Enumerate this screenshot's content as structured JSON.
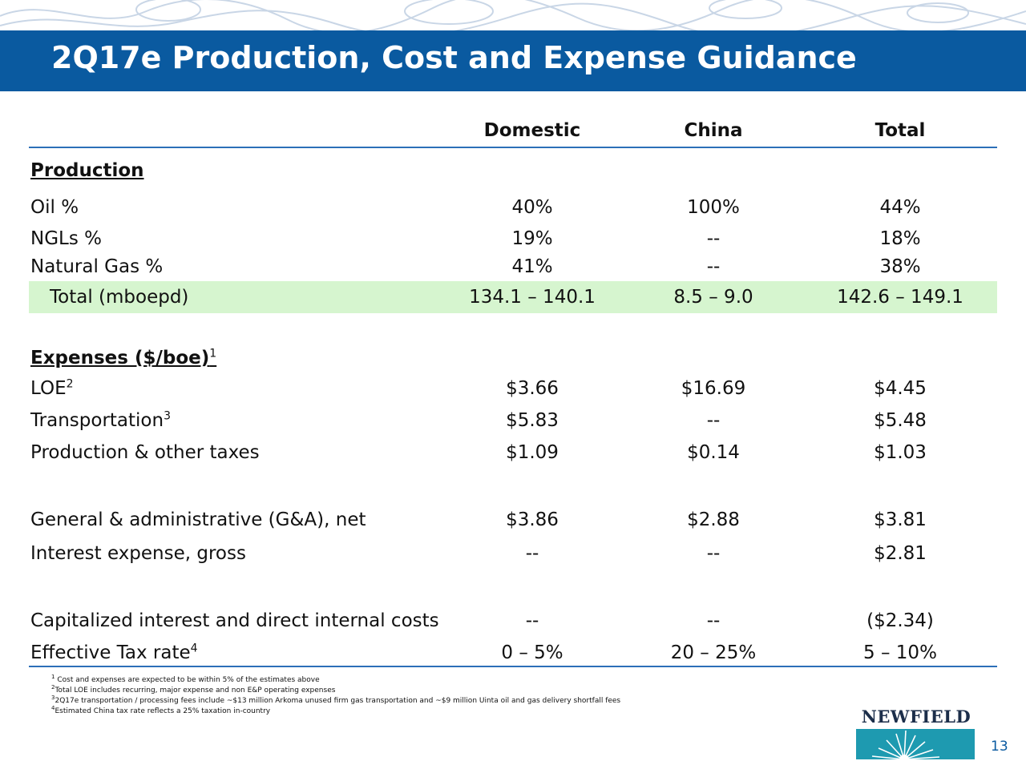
{
  "title": "2Q17e Production, Cost and Expense Guidance",
  "columns": [
    "Domestic",
    "China",
    "Total"
  ],
  "production": {
    "heading": "Production",
    "rows": [
      {
        "label": "Oil %",
        "values": [
          "40%",
          "100%",
          "44%"
        ]
      },
      {
        "label": "NGLs %",
        "values": [
          "19%",
          "--",
          "18%"
        ]
      },
      {
        "label": "Natural Gas %",
        "values": [
          "41%",
          "--",
          "38%"
        ]
      },
      {
        "label": "Total (mboepd)",
        "values": [
          "134.1 – 140.1",
          "8.5 – 9.0",
          "142.6 – 149.1"
        ]
      }
    ]
  },
  "expenses": {
    "heading": "Expenses ($/boe)",
    "heading_sup": "1",
    "rows": [
      {
        "label": "LOE",
        "sup": "2",
        "values": [
          "$3.66",
          "$16.69",
          "$4.45"
        ]
      },
      {
        "label": "Transportation",
        "sup": "3",
        "values": [
          "$5.83",
          "--",
          "$5.48"
        ]
      },
      {
        "label": "Production & other taxes",
        "values": [
          "$1.09",
          "$0.14",
          "$1.03"
        ]
      },
      {
        "label": "General & administrative (G&A), net",
        "values": [
          "$3.86",
          "$2.88",
          "$3.81"
        ]
      },
      {
        "label": "Interest expense, gross",
        "values": [
          "--",
          "--",
          "$2.81"
        ]
      },
      {
        "label": "Capitalized interest and direct internal costs",
        "values": [
          "--",
          "--",
          "($2.34)"
        ]
      },
      {
        "label": "Effective Tax rate",
        "sup": "4",
        "values": [
          "0 – 5%",
          "20 – 25%",
          "5 – 10%"
        ]
      }
    ]
  },
  "footnotes": [
    {
      "num": "1",
      "text": "Cost and expenses are expected to be within 5% of the estimates above"
    },
    {
      "num": "2",
      "text": "Total LOE includes recurring, major expense and non E&P operating expenses"
    },
    {
      "num": "3",
      "text": "2Q17e transportation / processing fees include ~$13 million Arkoma unused firm gas transportation and ~$9 million Uinta oil and gas delivery shortfall fees"
    },
    {
      "num": "4",
      "text": "Estimated China tax rate reflects a 25% taxation in-country"
    }
  ],
  "logo_text": "NEWFIELD",
  "page_number": "13",
  "colors": {
    "banner": "#0a5aa0",
    "rule": "#2c6fb8",
    "highlight": "#d6f5cf",
    "logo_teal": "#1e9ab0"
  }
}
